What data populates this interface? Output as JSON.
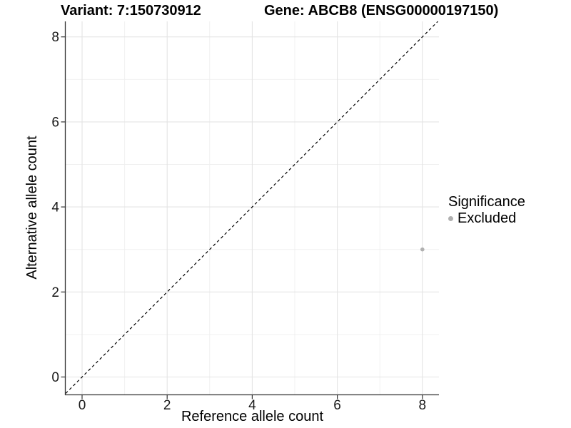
{
  "figure": {
    "kind": "scatter-plot",
    "background_color": "#ffffff"
  },
  "chart_data": {
    "type": "scatter",
    "title_left": "Variant: 7:150730912",
    "title_right": "Gene: ABCB8 (ENSG00000197150)",
    "xlabel": "Reference allele count",
    "ylabel": "Alternative allele count",
    "xlim": [
      -0.4,
      8.4
    ],
    "ylim": [
      -0.4,
      8.4
    ],
    "x_ticks": [
      0,
      2,
      4,
      6,
      8
    ],
    "y_ticks": [
      0,
      2,
      4,
      6,
      8
    ],
    "x_minor_gridlines": [
      1,
      3,
      5,
      7
    ],
    "y_minor_gridlines": [
      1,
      3,
      5,
      7
    ],
    "grid": "on",
    "identity_line": {
      "label": "y = x",
      "style": "dashed",
      "color": "#000000"
    },
    "series": [
      {
        "name": "Excluded",
        "color": "#b0b0b0",
        "points": [
          {
            "x": 8,
            "y": 3
          }
        ]
      }
    ],
    "legend": {
      "title": "Significance",
      "position": "right",
      "items": [
        {
          "label": "Excluded",
          "color": "#b0b0b0"
        }
      ]
    },
    "colors": {
      "gridline_major": "#e4e4e4",
      "gridline_minor": "#efefef",
      "axis_line": "#333333",
      "tick_label": "#1a1a1a",
      "point": "#b0b0b0"
    }
  }
}
